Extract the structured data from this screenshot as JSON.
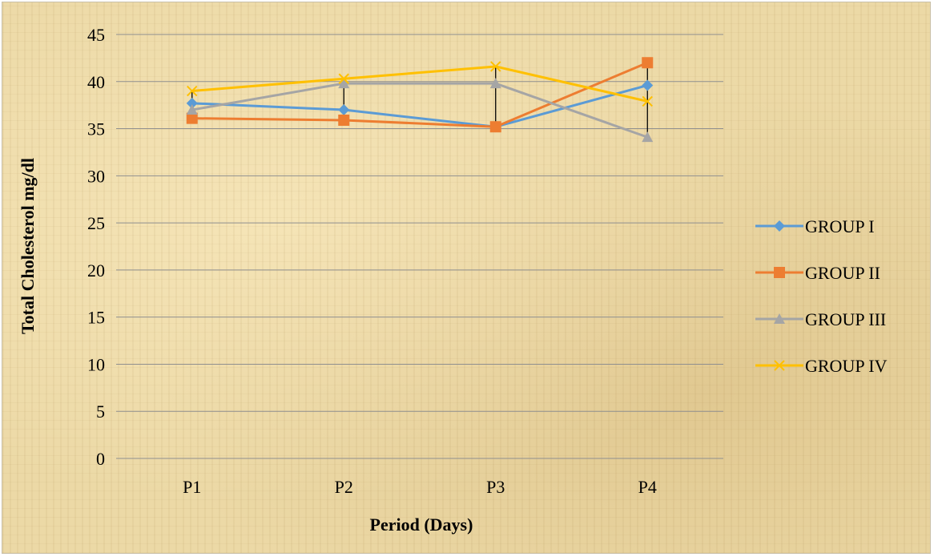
{
  "chart_data": {
    "type": "line",
    "title": "",
    "xlabel": "Period (Days)",
    "ylabel": "Total Cholesterol mg/dl",
    "categories": [
      "P1",
      "P2",
      "P3",
      "P4"
    ],
    "ylim": [
      0,
      45
    ],
    "yticks": [
      0,
      5,
      10,
      15,
      20,
      25,
      30,
      35,
      40,
      45
    ],
    "grid": "horizontal",
    "legend": "right",
    "series": [
      {
        "name": "GROUP I",
        "color": "#5b9bd5",
        "marker": "diamond",
        "values": [
          37.7,
          37.0,
          35.2,
          39.6
        ]
      },
      {
        "name": "GROUP II",
        "color": "#ed7d31",
        "marker": "square",
        "values": [
          36.1,
          35.9,
          35.2,
          42.0
        ]
      },
      {
        "name": "GROUP III",
        "color": "#a5a5a5",
        "marker": "triangle",
        "values": [
          37.0,
          39.8,
          39.8,
          34.1
        ]
      },
      {
        "name": "GROUP IV",
        "color": "#ffc000",
        "marker": "x",
        "values": [
          39.0,
          40.3,
          41.6,
          37.9
        ]
      }
    ]
  }
}
